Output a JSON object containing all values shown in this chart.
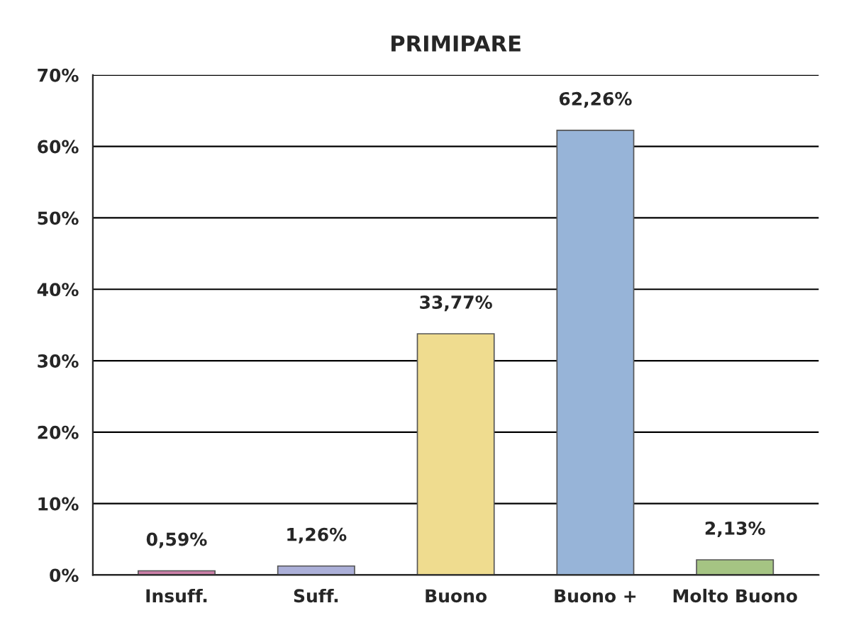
{
  "chart_data": {
    "type": "bar",
    "title": "PRIMIPARE",
    "categories": [
      "Insuff.",
      "Suff.",
      "Buono",
      "Buono +",
      "Molto Buono"
    ],
    "values": [
      0.59,
      1.26,
      33.77,
      62.26,
      2.13
    ],
    "colors": [
      "#d672a8",
      "#a3a9e0",
      "#ffe57f",
      "#8cb3e3",
      "#a5cf78"
    ],
    "value_labels": [
      "0,59%",
      "1,26%",
      "33,77%",
      "62,26%",
      "2,13%"
    ],
    "ylim": [
      0,
      70
    ],
    "yticks": [
      {
        "value": 0,
        "label": "0%"
      },
      {
        "value": 10,
        "label": "10%"
      },
      {
        "value": 20,
        "label": "20%"
      },
      {
        "value": 30,
        "label": "30%"
      },
      {
        "value": 40,
        "label": "40%"
      },
      {
        "value": 50,
        "label": "50%"
      },
      {
        "value": 60,
        "label": "60%"
      },
      {
        "value": 70,
        "label": "70%"
      }
    ],
    "grid": "y"
  }
}
